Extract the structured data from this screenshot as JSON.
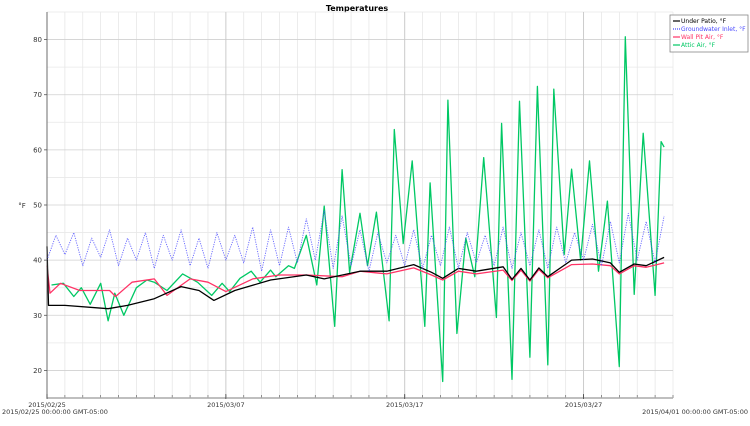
{
  "chart_data": {
    "type": "line",
    "title": "Temperatures",
    "ylabel": "°F",
    "xlabel": "",
    "xlim": [
      "2015-02-25 00:00",
      "2015-04-01 00:00"
    ],
    "ylim": [
      15,
      85
    ],
    "yticks": [
      20,
      30,
      40,
      50,
      60,
      70,
      80
    ],
    "xticks": [
      {
        "date": "2015-02-25 00:00",
        "label": "2015/02/25"
      },
      {
        "date": "2015-03-07 00:00",
        "label": "2015/03/07"
      },
      {
        "date": "2015-03-17 00:00",
        "label": "2015/03/17"
      },
      {
        "date": "2015-03-27 00:00",
        "label": "2015/03/27"
      }
    ],
    "range_start_label": "2015/02/25 00:00:00 GMT-05:00",
    "range_end_label": "2015/04/01 00:00:00 GMT-05:00",
    "grid": true,
    "legend_placement": "top-right",
    "series": [
      {
        "name": "Under Patio, °F",
        "color": "#000000",
        "style": "solid",
        "points": [
          [
            "2015-02-25 00:00",
            42.5
          ],
          [
            "2015-02-25 02:00",
            31.8
          ],
          [
            "2015-02-26 00:00",
            31.8
          ],
          [
            "2015-02-28 10:00",
            31.2
          ],
          [
            "2015-03-01 12:00",
            31.8
          ],
          [
            "2015-03-03 00:00",
            33.0
          ],
          [
            "2015-03-04 12:00",
            35.2
          ],
          [
            "2015-03-05 12:00",
            34.5
          ],
          [
            "2015-03-06 08:00",
            32.7
          ],
          [
            "2015-03-07 12:00",
            34.5
          ],
          [
            "2015-03-09 12:00",
            36.4
          ],
          [
            "2015-03-11 12:00",
            37.3
          ],
          [
            "2015-03-12 12:00",
            36.6
          ],
          [
            "2015-03-14 12:00",
            38.0
          ],
          [
            "2015-03-16 00:00",
            38.0
          ],
          [
            "2015-03-17 12:00",
            39.2
          ],
          [
            "2015-03-18 12:00",
            37.8
          ],
          [
            "2015-03-19 03:00",
            36.7
          ],
          [
            "2015-03-20 00:00",
            38.5
          ],
          [
            "2015-03-21 00:00",
            38.0
          ],
          [
            "2015-03-22 12:00",
            38.8
          ],
          [
            "2015-03-23 00:00",
            36.5
          ],
          [
            "2015-03-23 12:00",
            38.5
          ],
          [
            "2015-03-24 00:00",
            36.4
          ],
          [
            "2015-03-24 12:00",
            38.6
          ],
          [
            "2015-03-25 00:00",
            37.0
          ],
          [
            "2015-03-26 08:00",
            40.0
          ],
          [
            "2015-03-27 12:00",
            40.2
          ],
          [
            "2015-03-28 12:00",
            39.5
          ],
          [
            "2015-03-29 00:00",
            37.8
          ],
          [
            "2015-03-29 20:00",
            39.3
          ],
          [
            "2015-03-30 12:00",
            39.0
          ],
          [
            "2015-03-31 12:00",
            40.5
          ]
        ]
      },
      {
        "name": "Groundwater Inlet, °F",
        "color": "#4a4aff",
        "style": "dotted",
        "points": [
          [
            "2015-02-25 00:00",
            40
          ],
          [
            "2015-02-25 12:00",
            44.5
          ],
          [
            "2015-02-26 00:00",
            41
          ],
          [
            "2015-02-26 12:00",
            45
          ],
          [
            "2015-02-27 00:00",
            39
          ],
          [
            "2015-02-27 12:00",
            44
          ],
          [
            "2015-02-28 00:00",
            40.5
          ],
          [
            "2015-02-28 12:00",
            45.5
          ],
          [
            "2015-03-01 00:00",
            39
          ],
          [
            "2015-03-01 12:00",
            44
          ],
          [
            "2015-03-02 00:00",
            40
          ],
          [
            "2015-03-02 12:00",
            45
          ],
          [
            "2015-03-03 00:00",
            38.5
          ],
          [
            "2015-03-03 12:00",
            44.5
          ],
          [
            "2015-03-04 00:00",
            40
          ],
          [
            "2015-03-04 12:00",
            45.5
          ],
          [
            "2015-03-05 00:00",
            39
          ],
          [
            "2015-03-05 12:00",
            44
          ],
          [
            "2015-03-06 00:00",
            38.5
          ],
          [
            "2015-03-06 12:00",
            45
          ],
          [
            "2015-03-07 00:00",
            40
          ],
          [
            "2015-03-07 12:00",
            44.5
          ],
          [
            "2015-03-08 00:00",
            39.5
          ],
          [
            "2015-03-08 12:00",
            46
          ],
          [
            "2015-03-09 00:00",
            38
          ],
          [
            "2015-03-09 12:00",
            45.5
          ],
          [
            "2015-03-10 00:00",
            39
          ],
          [
            "2015-03-10 12:00",
            46
          ],
          [
            "2015-03-11 00:00",
            39.5
          ],
          [
            "2015-03-11 12:00",
            47.5
          ],
          [
            "2015-03-12 00:00",
            40
          ],
          [
            "2015-03-12 12:00",
            49
          ],
          [
            "2015-03-13 00:00",
            38.5
          ],
          [
            "2015-03-13 12:00",
            48
          ],
          [
            "2015-03-14 00:00",
            39
          ],
          [
            "2015-03-14 12:00",
            45.5
          ],
          [
            "2015-03-15 00:00",
            38
          ],
          [
            "2015-03-15 12:00",
            45
          ],
          [
            "2015-03-16 00:00",
            39.5
          ],
          [
            "2015-03-16 12:00",
            44.5
          ],
          [
            "2015-03-17 00:00",
            39
          ],
          [
            "2015-03-17 12:00",
            45.5
          ],
          [
            "2015-03-18 00:00",
            38.5
          ],
          [
            "2015-03-18 12:00",
            44.5
          ],
          [
            "2015-03-19 00:00",
            39
          ],
          [
            "2015-03-19 12:00",
            46
          ],
          [
            "2015-03-20 00:00",
            38.5
          ],
          [
            "2015-03-20 12:00",
            45
          ],
          [
            "2015-03-21 00:00",
            39.5
          ],
          [
            "2015-03-21 12:00",
            44.5
          ],
          [
            "2015-03-22 00:00",
            39
          ],
          [
            "2015-03-22 12:00",
            46
          ],
          [
            "2015-03-23 00:00",
            38.5
          ],
          [
            "2015-03-23 12:00",
            45
          ],
          [
            "2015-03-24 00:00",
            39
          ],
          [
            "2015-03-24 12:00",
            45.5
          ],
          [
            "2015-03-25 00:00",
            38.5
          ],
          [
            "2015-03-25 12:00",
            46
          ],
          [
            "2015-03-26 00:00",
            39.5
          ],
          [
            "2015-03-26 12:00",
            45
          ],
          [
            "2015-03-27 00:00",
            40
          ],
          [
            "2015-03-27 12:00",
            46.5
          ],
          [
            "2015-03-28 00:00",
            39
          ],
          [
            "2015-03-28 12:00",
            47
          ],
          [
            "2015-03-29 00:00",
            39.5
          ],
          [
            "2015-03-29 12:00",
            48.5
          ],
          [
            "2015-03-30 00:00",
            40
          ],
          [
            "2015-03-30 12:00",
            47
          ],
          [
            "2015-03-31 00:00",
            39.5
          ],
          [
            "2015-03-31 12:00",
            48
          ]
        ]
      },
      {
        "name": "Wall Pit Air, °F",
        "color": "#ff3366",
        "style": "solid",
        "points": [
          [
            "2015-02-25 00:00",
            39
          ],
          [
            "2015-02-25 04:00",
            34
          ],
          [
            "2015-02-25 18:00",
            35.8
          ],
          [
            "2015-02-26 20:00",
            34.5
          ],
          [
            "2015-02-28 12:00",
            34.5
          ],
          [
            "2015-02-28 20:00",
            33.4
          ],
          [
            "2015-03-01 18:00",
            36
          ],
          [
            "2015-03-03 00:00",
            36.6
          ],
          [
            "2015-03-03 17:00",
            33.6
          ],
          [
            "2015-03-05 00:00",
            36.6
          ],
          [
            "2015-03-06 00:00",
            36
          ],
          [
            "2015-03-07 00:00",
            34.3
          ],
          [
            "2015-03-08 12:00",
            36.6
          ],
          [
            "2015-03-10 00:00",
            37.3
          ],
          [
            "2015-03-11 12:00",
            37.3
          ],
          [
            "2015-03-13 12:00",
            37
          ],
          [
            "2015-03-14 12:00",
            38
          ],
          [
            "2015-03-16 00:00",
            37.5
          ],
          [
            "2015-03-17 12:00",
            38.6
          ],
          [
            "2015-03-18 12:00",
            37.3
          ],
          [
            "2015-03-19 03:00",
            36.4
          ],
          [
            "2015-03-20 00:00",
            38
          ],
          [
            "2015-03-21 00:00",
            37.5
          ],
          [
            "2015-03-22 12:00",
            38.2
          ],
          [
            "2015-03-23 00:00",
            36.3
          ],
          [
            "2015-03-23 12:00",
            38.2
          ],
          [
            "2015-03-24 00:00",
            36.2
          ],
          [
            "2015-03-24 12:00",
            38.3
          ],
          [
            "2015-03-25 00:00",
            36.8
          ],
          [
            "2015-03-26 08:00",
            39.2
          ],
          [
            "2015-03-27 12:00",
            39.3
          ],
          [
            "2015-03-28 12:00",
            39
          ],
          [
            "2015-03-29 00:00",
            37.5
          ],
          [
            "2015-03-29 20:00",
            39
          ],
          [
            "2015-03-30 12:00",
            38.7
          ],
          [
            "2015-03-31 12:00",
            39.5
          ]
        ]
      },
      {
        "name": "Attic Air, °F",
        "color": "#00c864",
        "style": "solid",
        "points": [
          [
            "2015-02-25 06:00",
            35.5
          ],
          [
            "2015-02-25 22:00",
            35.8
          ],
          [
            "2015-02-26 12:00",
            33.4
          ],
          [
            "2015-02-26 22:00",
            35.0
          ],
          [
            "2015-02-27 10:00",
            32.0
          ],
          [
            "2015-02-28 00:00",
            35.8
          ],
          [
            "2015-02-28 10:00",
            29.0
          ],
          [
            "2015-02-28 19:00",
            34.0
          ],
          [
            "2015-03-01 07:00",
            30.0
          ],
          [
            "2015-03-02 00:00",
            35.0
          ],
          [
            "2015-03-02 14:00",
            36.4
          ],
          [
            "2015-03-03 00:00",
            36.0
          ],
          [
            "2015-03-03 17:00",
            34.5
          ],
          [
            "2015-03-04 14:00",
            37.5
          ],
          [
            "2015-03-05 10:00",
            36.0
          ],
          [
            "2015-03-06 05:00",
            33.6
          ],
          [
            "2015-03-06 19:00",
            35.8
          ],
          [
            "2015-03-07 05:00",
            34.3
          ],
          [
            "2015-03-07 19:00",
            36.7
          ],
          [
            "2015-03-08 10:00",
            38.0
          ],
          [
            "2015-03-08 22:00",
            36.0
          ],
          [
            "2015-03-09 12:00",
            38.2
          ],
          [
            "2015-03-09 19:00",
            37.0
          ],
          [
            "2015-03-10 12:00",
            39.0
          ],
          [
            "2015-03-10 20:00",
            38.5
          ],
          [
            "2015-03-11 12:00",
            44.5
          ],
          [
            "2015-03-12 02:00",
            35.5
          ],
          [
            "2015-03-12 12:00",
            49.8
          ],
          [
            "2015-03-13 02:00",
            28.0
          ],
          [
            "2015-03-13 12:00",
            56.4
          ],
          [
            "2015-03-13 22:00",
            37.8
          ],
          [
            "2015-03-14 12:00",
            48.5
          ],
          [
            "2015-03-14 22:00",
            39.0
          ],
          [
            "2015-03-15 10:00",
            48.7
          ],
          [
            "2015-03-16 03:00",
            29.0
          ],
          [
            "2015-03-16 10:00",
            63.7
          ],
          [
            "2015-03-16 22:00",
            43.0
          ],
          [
            "2015-03-17 10:00",
            58.0
          ],
          [
            "2015-03-18 03:00",
            28.0
          ],
          [
            "2015-03-18 10:00",
            54.0
          ],
          [
            "2015-03-19 03:00",
            18.0
          ],
          [
            "2015-03-19 10:00",
            69.0
          ],
          [
            "2015-03-19 22:00",
            26.7
          ],
          [
            "2015-03-20 10:00",
            44.0
          ],
          [
            "2015-03-20 22:00",
            37.0
          ],
          [
            "2015-03-21 10:00",
            58.6
          ],
          [
            "2015-03-22 03:00",
            29.6
          ],
          [
            "2015-03-22 10:00",
            64.8
          ],
          [
            "2015-03-23 00:00",
            18.4
          ],
          [
            "2015-03-23 10:00",
            68.8
          ],
          [
            "2015-03-24 00:00",
            22.4
          ],
          [
            "2015-03-24 10:00",
            71.5
          ],
          [
            "2015-03-25 00:00",
            21.0
          ],
          [
            "2015-03-25 08:00",
            71.0
          ],
          [
            "2015-03-25 22:00",
            41.0
          ],
          [
            "2015-03-26 08:00",
            56.5
          ],
          [
            "2015-03-26 20:00",
            40.0
          ],
          [
            "2015-03-27 08:00",
            58.0
          ],
          [
            "2015-03-27 20:00",
            38.0
          ],
          [
            "2015-03-28 08:00",
            50.7
          ],
          [
            "2015-03-29 00:00",
            20.7
          ],
          [
            "2015-03-29 08:00",
            80.5
          ],
          [
            "2015-03-29 20:00",
            33.8
          ],
          [
            "2015-03-30 08:00",
            63.0
          ],
          [
            "2015-03-31 00:00",
            33.6
          ],
          [
            "2015-03-31 08:00",
            61.5
          ],
          [
            "2015-03-31 12:00",
            60.5
          ]
        ]
      }
    ]
  }
}
